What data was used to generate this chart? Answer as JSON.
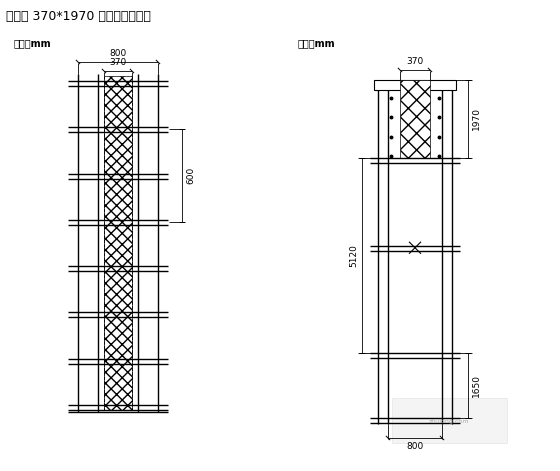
{
  "title": "框架梁 370*1970 模板支架计算书",
  "bg_color": "#ffffff",
  "line_color": "#000000",
  "left_unit": "单位：mm",
  "right_unit": "单位：mm",
  "dim_800_top": "800",
  "dim_370_left": "370",
  "dim_600": "600",
  "dim_370_right": "370",
  "dim_1970": "1970",
  "dim_5120": "5120",
  "dim_1650": "1650",
  "dim_800_bot": "800",
  "figw": 5.6,
  "figh": 4.71,
  "dpi": 100
}
